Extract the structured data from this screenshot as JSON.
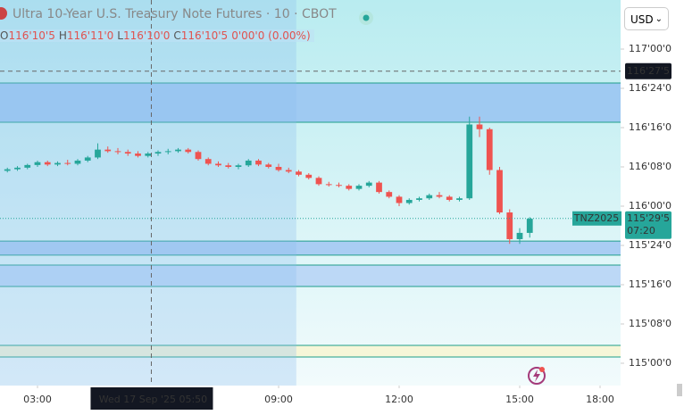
{
  "header": {
    "title": "Ultra 10-Year U.S. Treasury Note Futures · 10 · CBOT",
    "ohlc": [
      {
        "key": "O",
        "value": "116'10'5"
      },
      {
        "key": "H",
        "value": "116'11'0"
      },
      {
        "key": "L",
        "value": "116'10'0"
      },
      {
        "key": "C",
        "value": "116'10'5"
      }
    ],
    "change": "0'00'0 (0.00%)",
    "currency": "USD"
  },
  "chart_data": {
    "type": "candlestick",
    "x": [
      2.25,
      2.5,
      2.75,
      3,
      3.25,
      3.5,
      3.75,
      4,
      4.25,
      4.5,
      4.75,
      5,
      5.25,
      5.5,
      5.75,
      6,
      6.25,
      6.5,
      6.75,
      7,
      7.25,
      7.5,
      7.75,
      8,
      8.25,
      8.5,
      8.75,
      9,
      9.25,
      9.5,
      9.75,
      10,
      10.25,
      10.5,
      10.75,
      11,
      11.25,
      11.5,
      11.75,
      12,
      12.25,
      12.5,
      12.75,
      13,
      13.25,
      13.5,
      13.75,
      14,
      14.25,
      14.5,
      14.75,
      15,
      15.25
    ],
    "open": [
      116.225,
      116.235,
      116.245,
      116.262,
      116.28,
      116.265,
      116.275,
      116.27,
      116.29,
      116.31,
      116.36,
      116.35,
      116.345,
      116.335,
      116.32,
      116.335,
      116.345,
      116.35,
      116.36,
      116.345,
      116.3,
      116.27,
      116.26,
      116.25,
      116.26,
      116.29,
      116.265,
      116.25,
      116.23,
      116.22,
      116.2,
      116.18,
      116.14,
      116.135,
      116.13,
      116.11,
      116.13,
      116.15,
      116.09,
      116.06,
      116.02,
      116.04,
      116.05,
      116.07,
      116.06,
      116.04,
      116.05,
      116.52,
      116.49,
      116.23,
      115.96,
      115.79,
      115.83
    ],
    "high": [
      116.245,
      116.255,
      116.27,
      116.29,
      116.29,
      116.285,
      116.295,
      116.3,
      116.32,
      116.4,
      116.38,
      116.37,
      116.36,
      116.35,
      116.345,
      116.355,
      116.365,
      116.37,
      116.37,
      116.355,
      116.31,
      116.285,
      116.275,
      116.27,
      116.3,
      116.3,
      116.275,
      116.27,
      116.245,
      116.23,
      116.21,
      116.19,
      116.155,
      116.15,
      116.14,
      116.14,
      116.16,
      116.16,
      116.1,
      116.07,
      116.05,
      116.06,
      116.08,
      116.09,
      116.07,
      116.06,
      116.57,
      116.57,
      116.5,
      116.25,
      115.98,
      115.86,
      115.93
    ],
    "low": [
      116.215,
      116.225,
      116.235,
      116.25,
      116.255,
      116.255,
      116.26,
      116.26,
      116.28,
      116.3,
      116.34,
      116.33,
      116.32,
      116.31,
      116.31,
      116.32,
      116.33,
      116.34,
      116.335,
      116.29,
      116.26,
      116.25,
      116.24,
      116.235,
      116.25,
      116.255,
      116.24,
      116.22,
      116.21,
      116.19,
      116.17,
      116.13,
      116.125,
      116.12,
      116.1,
      116.1,
      116.12,
      116.08,
      116.05,
      116.0,
      116.01,
      116.03,
      116.04,
      116.05,
      116.03,
      116.03,
      116.04,
      116.44,
      116.2,
      115.95,
      115.76,
      115.76,
      115.8
    ],
    "close": [
      116.235,
      116.245,
      116.262,
      116.28,
      116.265,
      116.275,
      116.27,
      116.29,
      116.31,
      116.36,
      116.35,
      116.345,
      116.335,
      116.32,
      116.335,
      116.345,
      116.35,
      116.36,
      116.345,
      116.3,
      116.27,
      116.26,
      116.25,
      116.26,
      116.29,
      116.265,
      116.25,
      116.23,
      116.22,
      116.2,
      116.18,
      116.14,
      116.135,
      116.13,
      116.11,
      116.13,
      116.15,
      116.09,
      116.06,
      116.02,
      116.04,
      116.05,
      116.07,
      116.06,
      116.04,
      116.05,
      116.52,
      116.49,
      116.23,
      115.96,
      115.79,
      115.83,
      115.92
    ],
    "up_color": "#26a69a",
    "down_color": "#ef5350",
    "xlim": [
      2.067,
      18.511
    ],
    "session_break": [
      16,
      17
    ],
    "xticks": [
      {
        "value": 3,
        "label": "03:00"
      },
      {
        "value": 9,
        "label": "09:00"
      },
      {
        "value": 12,
        "label": "12:00"
      },
      {
        "value": 15,
        "label": "15:00"
      },
      {
        "value": 18,
        "label": "18:00"
      }
    ],
    "ylim": [
      114.858,
      117.3125
    ],
    "yticks": [
      {
        "value": 117,
        "label": "117'00'0"
      },
      {
        "value": 116.75,
        "label": "116'24'0"
      },
      {
        "value": 116.5,
        "label": "116'16'0"
      },
      {
        "value": 116.25,
        "label": "116'08'0"
      },
      {
        "value": 116,
        "label": "116'00'0"
      },
      {
        "value": 115.75,
        "label": "115'24'0"
      },
      {
        "value": 115.5,
        "label": "115'16'0"
      },
      {
        "value": 115.25,
        "label": "115'08'0"
      },
      {
        "value": 115,
        "label": "115'00'0"
      }
    ],
    "zones": [
      {
        "from": 116.534,
        "to": 116.784,
        "color": "#9fcaf2"
      },
      {
        "from": 115.688,
        "to": 115.778,
        "color": "#a9cdf3"
      },
      {
        "from": 115.489,
        "to": 115.625,
        "color": "#bcd8f6"
      },
      {
        "from": 115.04,
        "to": 115.114,
        "color": "#f6f6d8"
      }
    ],
    "zone_border": "#1f9e8a",
    "shaded_until": 9.44,
    "crosshair": {
      "x": 5.833,
      "x_label": "Wed 17 Sep '25   05:50",
      "y": {
        "value": 116.859375,
        "label": "116'27'5"
      }
    },
    "last": {
      "symbol": "TNZ2025",
      "price": {
        "value": 115.921875,
        "label": "115'29'5"
      },
      "countdown": "07:20"
    }
  }
}
